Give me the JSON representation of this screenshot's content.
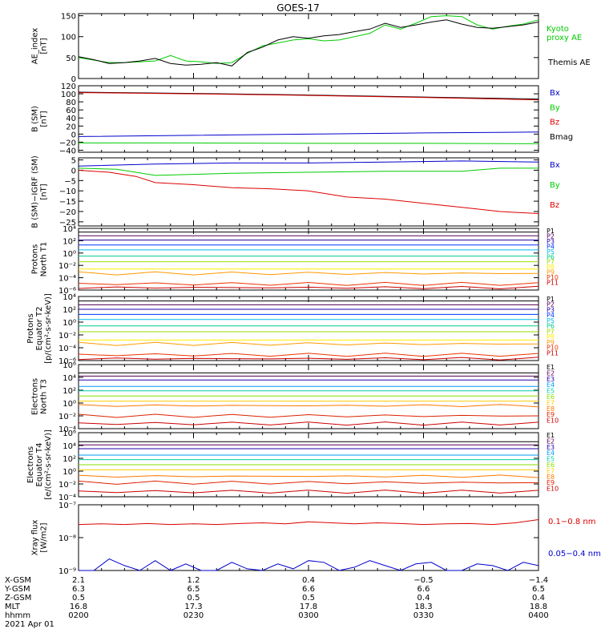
{
  "chart_data": {
    "type": "line",
    "title": "GOES-17",
    "x_ticks": [
      "0200",
      "0230",
      "0300",
      "0330",
      "0400"
    ],
    "xrange": [
      "0200",
      "0400"
    ],
    "panels": [
      {
        "id": "ae",
        "ylabel": [
          "AE_index",
          "[nT]"
        ],
        "scale": "linear",
        "ylim": [
          0,
          155
        ],
        "ticks": [
          {
            "v": 0,
            "t": "0"
          },
          {
            "v": 50,
            "t": "50"
          },
          {
            "v": 100,
            "t": "100"
          },
          {
            "v": 150,
            "t": "150"
          }
        ],
        "legend": [
          {
            "name": "Kyoto",
            "color": "#00cc00"
          },
          {
            "name": "proxy AE",
            "color": "#00cc00"
          },
          {
            "name": "Themis AE",
            "color": "#000000"
          }
        ],
        "series": [
          {
            "name": "Kyoto proxy AE",
            "color": "#00cc00",
            "x": [
              0,
              4,
              8,
              12,
              16,
              20,
              24,
              28,
              32,
              36,
              40,
              44,
              48,
              52,
              56,
              60,
              64,
              68,
              72,
              76,
              80,
              84,
              88,
              92,
              96,
              100,
              104,
              108,
              112,
              116,
              120
            ],
            "y": [
              50,
              44,
              38,
              38,
              40,
              42,
              55,
              42,
              40,
              36,
              38,
              60,
              78,
              85,
              92,
              95,
              90,
              92,
              100,
              108,
              128,
              118,
              132,
              148,
              150,
              148,
              128,
              118,
              125,
              130,
              140
            ]
          },
          {
            "name": "Themis AE",
            "color": "#000000",
            "x": [
              0,
              4,
              8,
              12,
              16,
              20,
              24,
              28,
              32,
              36,
              40,
              44,
              48,
              52,
              56,
              60,
              64,
              68,
              72,
              76,
              80,
              84,
              88,
              92,
              96,
              100,
              104,
              108,
              112,
              116,
              120
            ],
            "y": [
              52,
              45,
              36,
              38,
              42,
              48,
              36,
              32,
              34,
              38,
              30,
              62,
              75,
              92,
              100,
              96,
              102,
              105,
              112,
              118,
              132,
              122,
              128,
              135,
              140,
              130,
              122,
              120,
              124,
              128,
              135
            ]
          }
        ]
      },
      {
        "id": "bsm",
        "ylabel": [
          "B (SM)",
          "[nT]"
        ],
        "scale": "linear",
        "ylim": [
          -45,
          120
        ],
        "ticks": [
          {
            "v": 120,
            "t": "120"
          },
          {
            "v": 100,
            "t": "100"
          },
          {
            "v": 80,
            "t": "80"
          },
          {
            "v": 60,
            "t": "60"
          },
          {
            "v": 40,
            "t": "40"
          },
          {
            "v": 20,
            "t": "20"
          },
          {
            "v": 0,
            "t": "0"
          },
          {
            "v": -20,
            "t": "−20"
          },
          {
            "v": -40,
            "t": "−40"
          }
        ],
        "legend": [
          {
            "name": "Bx",
            "color": "#0000cc"
          },
          {
            "name": "By",
            "color": "#00cc00"
          },
          {
            "name": "Bz",
            "color": "#dd0000"
          },
          {
            "name": "Bmag",
            "color": "#000000"
          }
        ],
        "series": [
          {
            "name": "Bmag",
            "color": "#000000",
            "x": [
              0,
              30,
              60,
              90,
              120
            ],
            "y": [
              104,
              101,
              97,
              92,
              87
            ]
          },
          {
            "name": "Bz",
            "color": "#dd0000",
            "x": [
              0,
              30,
              60,
              90,
              120
            ],
            "y": [
              103,
              100,
              96,
              91,
              85
            ]
          },
          {
            "name": "Bx",
            "color": "#0000cc",
            "x": [
              0,
              30,
              60,
              90,
              120
            ],
            "y": [
              -6,
              -3,
              0,
              3,
              5
            ]
          },
          {
            "name": "By",
            "color": "#00cc00",
            "x": [
              0,
              30,
              60,
              90,
              120
            ],
            "y": [
              -22,
              -22,
              -23,
              -23,
              -24
            ]
          }
        ]
      },
      {
        "id": "bigrf",
        "ylabel": [
          "B (SM)−IGRF (SM)",
          "[nT]"
        ],
        "scale": "linear",
        "ylim": [
          -27,
          6
        ],
        "ticks": [
          {
            "v": 5,
            "t": "5"
          },
          {
            "v": 0,
            "t": "0"
          },
          {
            "v": -5,
            "t": "−5"
          },
          {
            "v": -10,
            "t": "−10"
          },
          {
            "v": -15,
            "t": "−15"
          },
          {
            "v": -20,
            "t": "−20"
          },
          {
            "v": -25,
            "t": "−25"
          }
        ],
        "legend": [
          {
            "name": "Bx",
            "color": "#0000cc"
          },
          {
            "name": "By",
            "color": "#00cc00"
          },
          {
            "name": "Bz",
            "color": "#dd0000"
          }
        ],
        "series": [
          {
            "name": "Bx",
            "color": "#0000cc",
            "x": [
              0,
              20,
              40,
              60,
              80,
              100,
              120
            ],
            "y": [
              2,
              3,
              3.5,
              3.5,
              4,
              4.5,
              4
            ]
          },
          {
            "name": "By",
            "color": "#00cc00",
            "x": [
              0,
              10,
              20,
              40,
              60,
              80,
              100,
              110,
              120
            ],
            "y": [
              1,
              0.5,
              -2.5,
              -1.5,
              -1,
              -0.5,
              -0.5,
              1,
              1
            ]
          },
          {
            "name": "Bz",
            "color": "#dd0000",
            "x": [
              0,
              8,
              15,
              20,
              30,
              40,
              50,
              60,
              70,
              80,
              90,
              100,
              110,
              120
            ],
            "y": [
              0,
              -1,
              -3,
              -6,
              -7,
              -8.5,
              -9,
              -10,
              -13,
              -14,
              -16,
              -18,
              -20,
              -21
            ]
          }
        ]
      },
      {
        "id": "pnorth",
        "ylabel": [
          "Protons",
          "North T1"
        ],
        "scale": "log",
        "ylim": [
          -6,
          4
        ],
        "ticks": [
          {
            "v": 4,
            "t": "10⁴"
          },
          {
            "v": 2,
            "t": "10²"
          },
          {
            "v": 0,
            "t": "10⁰"
          },
          {
            "v": -2,
            "t": "10⁻²"
          },
          {
            "v": -4,
            "t": "10⁻⁴"
          },
          {
            "v": -6,
            "t": "10⁻⁶"
          }
        ],
        "channels": [
          {
            "name": "P1",
            "color": "#000000",
            "y": 3.4
          },
          {
            "name": "P2",
            "color": "#550055",
            "y": 2.8
          },
          {
            "name": "P3",
            "color": "#2200aa",
            "y": 2.1
          },
          {
            "name": "P4",
            "color": "#0033ff",
            "y": 1.3
          },
          {
            "name": "P5",
            "color": "#00bbee",
            "y": 0.5
          },
          {
            "name": "P6",
            "color": "#00cc88",
            "y": -0.5
          },
          {
            "name": "P7",
            "color": "#99dd00",
            "y": -1.4
          },
          {
            "name": "P8",
            "color": "#ffee00",
            "y": -2.6
          },
          {
            "name": "P9",
            "color": "#ff9900",
            "y": -3.3
          },
          {
            "name": "P10",
            "color": "#ee3300",
            "y": -5.0
          },
          {
            "name": "P11",
            "color": "#cc0000",
            "y": -5.6
          }
        ]
      },
      {
        "id": "peq",
        "ylabel": [
          "Protons",
          "Equator T2",
          "[p/(cm²-s-sr-keV)]"
        ],
        "scale": "log",
        "ylim": [
          -6,
          4
        ],
        "ticks": [
          {
            "v": 4,
            "t": "10⁴"
          },
          {
            "v": 2,
            "t": "10²"
          },
          {
            "v": 0,
            "t": "10⁰"
          },
          {
            "v": -2,
            "t": "10⁻²"
          },
          {
            "v": -4,
            "t": "10⁻⁴"
          },
          {
            "v": -6,
            "t": "10⁻⁶"
          }
        ],
        "channels": [
          {
            "name": "P1",
            "color": "#000000",
            "y": 3.3
          },
          {
            "name": "P2",
            "color": "#550055",
            "y": 2.7
          },
          {
            "name": "P3",
            "color": "#2200aa",
            "y": 2.0
          },
          {
            "name": "P4",
            "color": "#0033ff",
            "y": 1.2
          },
          {
            "name": "P5",
            "color": "#00bbee",
            "y": 0.4
          },
          {
            "name": "P6",
            "color": "#00cc88",
            "y": -0.6
          },
          {
            "name": "P7",
            "color": "#99dd00",
            "y": -1.5
          },
          {
            "name": "P8",
            "color": "#ffee00",
            "y": -2.8
          },
          {
            "name": "P9",
            "color": "#ff9900",
            "y": -3.4
          },
          {
            "name": "P10",
            "color": "#ee3300",
            "y": -5.1
          },
          {
            "name": "P11",
            "color": "#cc0000",
            "y": -5.7
          }
        ]
      },
      {
        "id": "enorth",
        "ylabel": [
          "Electrons",
          "North T3"
        ],
        "scale": "log",
        "ylim": [
          -4,
          6
        ],
        "ticks": [
          {
            "v": 6,
            "t": "10⁶"
          },
          {
            "v": 4,
            "t": "10⁴"
          },
          {
            "v": 2,
            "t": "10²"
          },
          {
            "v": 0,
            "t": "10⁰"
          },
          {
            "v": -2,
            "t": "10⁻²"
          },
          {
            "v": -4,
            "t": "10⁻⁴"
          }
        ],
        "channels": [
          {
            "name": "E1",
            "color": "#000000",
            "y": 4.7
          },
          {
            "name": "E2",
            "color": "#550055",
            "y": 4.2
          },
          {
            "name": "E3",
            "color": "#2200aa",
            "y": 3.6
          },
          {
            "name": "E4",
            "color": "#0099ff",
            "y": 2.6
          },
          {
            "name": "E5",
            "color": "#00ccaa",
            "y": 1.9
          },
          {
            "name": "E6",
            "color": "#88dd00",
            "y": 1.1
          },
          {
            "name": "E7",
            "color": "#ffcc00",
            "y": 0.3
          },
          {
            "name": "E8",
            "color": "#ff7700",
            "y": -0.4
          },
          {
            "name": "E9",
            "color": "#dd2200",
            "y": -2.0
          },
          {
            "name": "E10",
            "color": "#cc0000",
            "y": -3.2
          }
        ]
      },
      {
        "id": "eeq",
        "ylabel": [
          "Electrons",
          "Equator T4",
          "[e/(cm²-s-sr-keV)]"
        ],
        "scale": "log",
        "ylim": [
          -4,
          6
        ],
        "ticks": [
          {
            "v": 6,
            "t": "10⁶"
          },
          {
            "v": 4,
            "t": "10⁴"
          },
          {
            "v": 2,
            "t": "10²"
          },
          {
            "v": 0,
            "t": "10⁰"
          },
          {
            "v": -2,
            "t": "10⁻²"
          },
          {
            "v": -4,
            "t": "10⁻⁴"
          }
        ],
        "channels": [
          {
            "name": "E1",
            "color": "#000000",
            "y": 4.6
          },
          {
            "name": "E2",
            "color": "#550055",
            "y": 4.1
          },
          {
            "name": "E3",
            "color": "#2200aa",
            "y": 3.5
          },
          {
            "name": "E4",
            "color": "#0099ff",
            "y": 2.5
          },
          {
            "name": "E5",
            "color": "#00ccaa",
            "y": 1.8
          },
          {
            "name": "E6",
            "color": "#88dd00",
            "y": 1.0
          },
          {
            "name": "E7",
            "color": "#ffcc00",
            "y": 0.2
          },
          {
            "name": "E8",
            "color": "#ff7700",
            "y": -0.8
          },
          {
            "name": "E9",
            "color": "#dd2200",
            "y": -1.8
          },
          {
            "name": "E10",
            "color": "#cc0000",
            "y": -3.2
          }
        ]
      },
      {
        "id": "xray",
        "ylabel": [
          "Xray flux",
          "[W/m2]"
        ],
        "scale": "log",
        "ylim": [
          -9,
          -7
        ],
        "ticks": [
          {
            "v": -7,
            "t": "10⁻⁷"
          },
          {
            "v": -8,
            "t": "10⁻⁸"
          },
          {
            "v": -9,
            "t": "10⁻⁹"
          }
        ],
        "legend": [
          {
            "name": "0.1−0.8 nm",
            "color": "#dd0000"
          },
          {
            "name": "0.05−0.4 nm",
            "color": "#0000cc"
          }
        ],
        "series": [
          {
            "name": "0.1−0.8 nm",
            "color": "#dd0000",
            "x": [
              0,
              6,
              12,
              18,
              24,
              30,
              36,
              42,
              48,
              54,
              60,
              66,
              72,
              78,
              84,
              90,
              96,
              102,
              108,
              114,
              120
            ],
            "y": [
              -7.6,
              -7.58,
              -7.6,
              -7.57,
              -7.6,
              -7.58,
              -7.6,
              -7.57,
              -7.55,
              -7.58,
              -7.52,
              -7.55,
              -7.58,
              -7.55,
              -7.57,
              -7.6,
              -7.58,
              -7.57,
              -7.6,
              -7.55,
              -7.45
            ]
          },
          {
            "name": "0.05−0.4 nm",
            "color": "#0000cc",
            "x": [
              0,
              4,
              8,
              12,
              16,
              20,
              24,
              28,
              32,
              36,
              40,
              44,
              48,
              52,
              56,
              60,
              64,
              68,
              72,
              76,
              80,
              84,
              88,
              92,
              96,
              100,
              104,
              108,
              112,
              116,
              120
            ],
            "y": [
              -9,
              -9,
              -8.65,
              -8.85,
              -9,
              -8.7,
              -9,
              -8.8,
              -9,
              -9,
              -8.75,
              -8.95,
              -9,
              -8.8,
              -8.95,
              -8.7,
              -8.75,
              -9,
              -8.9,
              -8.7,
              -8.85,
              -9,
              -8.8,
              -8.75,
              -9,
              -9,
              -8.8,
              -8.85,
              -9,
              -8.75,
              -8.85
            ]
          }
        ]
      }
    ],
    "footer": {
      "rows": [
        {
          "label": "X-GSM",
          "values": [
            "2.1",
            "1.2",
            "0.4",
            "−0.5",
            "−1.4"
          ]
        },
        {
          "label": "Y-GSM",
          "values": [
            "6.3",
            "6.5",
            "6.6",
            "6.6",
            "6.5"
          ]
        },
        {
          "label": "Z-GSM",
          "values": [
            "0.5",
            "0.5",
            "0.5",
            "0.4",
            "0.4"
          ]
        },
        {
          "label": "MLT",
          "values": [
            "16.8",
            "17.3",
            "17.8",
            "18.3",
            "18.8"
          ]
        },
        {
          "label": "hhmm",
          "values": [
            "0200",
            "0230",
            "0300",
            "0330",
            "0400"
          ]
        }
      ],
      "date": "2021 Apr 01"
    }
  }
}
